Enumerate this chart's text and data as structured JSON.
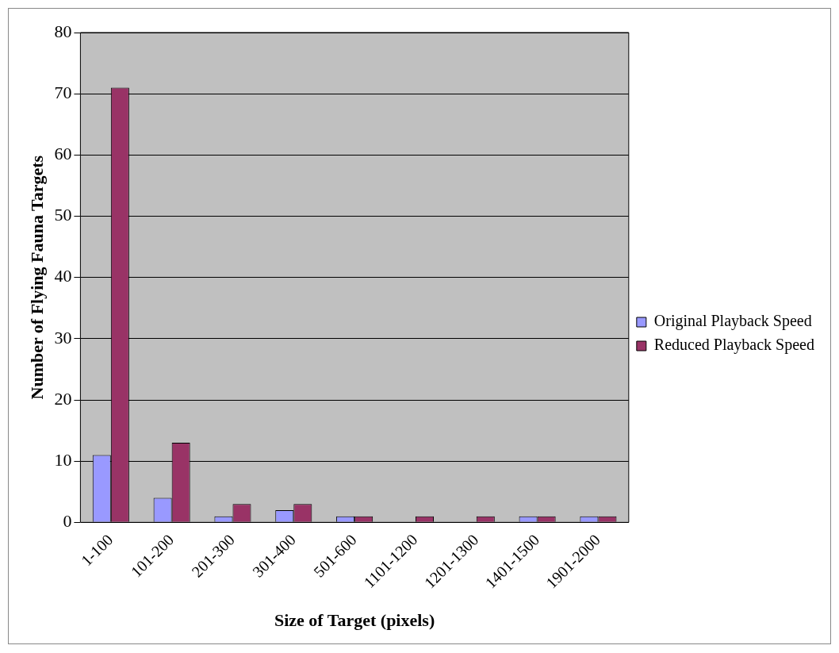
{
  "chart_data": {
    "type": "bar",
    "xlabel": "Size of Target (pixels)",
    "ylabel": "Number of Flying Fauna Targets",
    "categories": [
      "1-100",
      "101-200",
      "201-300",
      "301-400",
      "501-600",
      "1101-1200",
      "1201-1300",
      "1401-1500",
      "1901-2000"
    ],
    "series": [
      {
        "name": "Original Playback Speed",
        "color": "#9999ff",
        "values": [
          11,
          4,
          1,
          2,
          1,
          0,
          0,
          1,
          1
        ]
      },
      {
        "name": "Reduced Playback Speed",
        "color": "#993366",
        "values": [
          71,
          13,
          3,
          3,
          1,
          1,
          1,
          1,
          1
        ]
      }
    ],
    "ylim": [
      0,
      80
    ],
    "yticks": [
      0,
      10,
      20,
      30,
      40,
      50,
      60,
      70,
      80
    ],
    "grid": "y",
    "legend": "right"
  }
}
